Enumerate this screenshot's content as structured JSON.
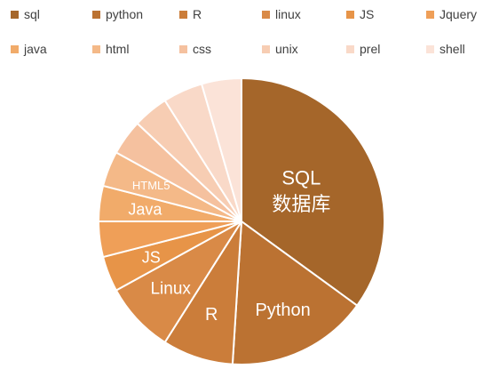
{
  "chart_data": {
    "type": "pie",
    "legend_position": "top",
    "categories": [
      "sql",
      "python",
      "R",
      "linux",
      "JS",
      "Jquery",
      "java",
      "html",
      "css",
      "unix",
      "prel",
      "shell"
    ],
    "values": [
      35,
      16,
      8,
      8,
      4,
      4,
      4,
      4,
      4,
      4,
      4.5,
      4.5
    ],
    "colors": [
      "#a5662a",
      "#bb7232",
      "#cb7d3a",
      "#d98a47",
      "#e79448",
      "#ef9f58",
      "#f1ab6a",
      "#f4b988",
      "#f5c19f",
      "#f7cdb3",
      "#f9d9c8",
      "#fbe3d8"
    ],
    "slice_labels": [
      [
        "SQL",
        "数据库"
      ],
      [
        "Python"
      ],
      [
        "R"
      ],
      [
        "Linux"
      ],
      [
        "JS"
      ],
      [],
      [
        "Java"
      ],
      [
        "HTML5"
      ],
      [],
      [],
      [],
      []
    ]
  }
}
